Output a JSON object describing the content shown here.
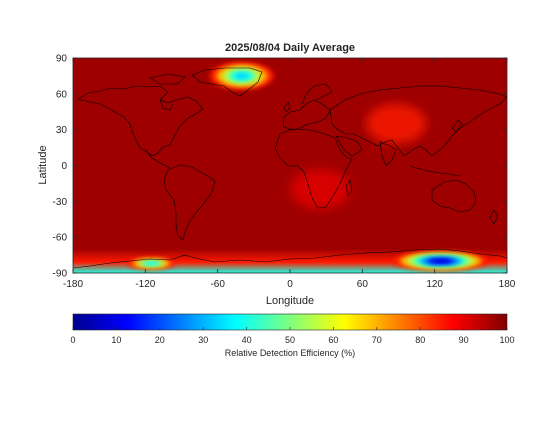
{
  "chart_data": {
    "type": "heatmap",
    "title": "2025/08/04 Daily Average",
    "xlabel": "Longitude",
    "ylabel": "Latitude",
    "xlim": [
      -180,
      180
    ],
    "ylim": [
      -90,
      90
    ],
    "x_ticks": [
      -180,
      -120,
      -60,
      0,
      60,
      120,
      180
    ],
    "y_ticks": [
      90,
      60,
      30,
      0,
      -30,
      -60,
      -90
    ],
    "x_tick_labels": [
      "-180",
      "-120",
      "-60",
      "0",
      "60",
      "120",
      "180"
    ],
    "y_tick_labels": [
      "90",
      "60",
      "30",
      "0",
      "-30",
      "-60",
      "-90"
    ],
    "background_value": 97,
    "features": [
      {
        "name": "Greenland low",
        "lon": -40,
        "lat": 75,
        "min_value": 33
      },
      {
        "name": "Antarctic low (East)",
        "lon": 125,
        "lat": -80,
        "min_value": 10
      },
      {
        "name": "Antarctic low (West)",
        "lon": -115,
        "lat": -82,
        "min_value": 40
      },
      {
        "name": "Antarctic edge band",
        "lat_range": [
          -90,
          -70
        ],
        "value_range": [
          40,
          85
        ]
      },
      {
        "name": "Central Asia elevated",
        "lon": 88,
        "lat": 35,
        "value": 85
      },
      {
        "name": "Southern Africa",
        "lon": 25,
        "lat": -20,
        "value": 90
      }
    ],
    "colorbar": {
      "label": "Relative Detection Efficiency (%)",
      "range": [
        0,
        100
      ],
      "ticks": [
        0,
        10,
        20,
        30,
        40,
        50,
        60,
        70,
        80,
        90,
        100
      ],
      "tick_labels": [
        "0",
        "10",
        "20",
        "30",
        "40",
        "50",
        "60",
        "70",
        "80",
        "90",
        "100"
      ],
      "colormap": "jet"
    },
    "grid": false
  }
}
